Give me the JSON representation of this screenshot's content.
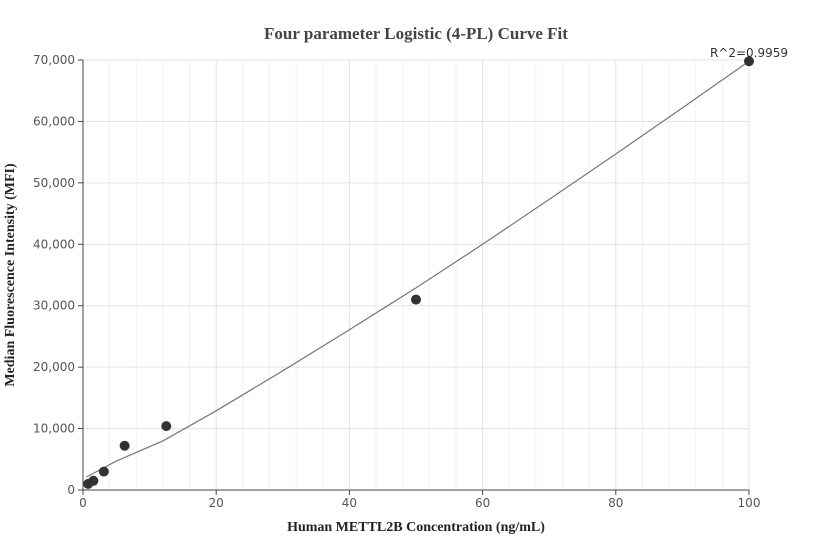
{
  "chart_data": {
    "type": "scatter",
    "title": "Four parameter Logistic (4-PL) Curve Fit",
    "xlabel": "Human METTL2B Concentration (ng/mL)",
    "ylabel": "Median Fluorescence Intensity (MFI)",
    "xlim": [
      0,
      100
    ],
    "ylim": [
      0,
      70000
    ],
    "x_ticks": [
      0,
      20,
      40,
      60,
      80,
      100
    ],
    "x_tick_labels": [
      "0",
      "20",
      "40",
      "60",
      "80",
      "100"
    ],
    "y_ticks": [
      0,
      10000,
      20000,
      30000,
      40000,
      50000,
      60000,
      70000
    ],
    "y_tick_labels": [
      "0",
      "10,000",
      "20,000",
      "30,000",
      "40,000",
      "50,000",
      "60,000",
      "70,000"
    ],
    "grid": true,
    "annotation": "R^2=0.9959",
    "series": [
      {
        "points": [
          {
            "x": 0.78,
            "y": 1000
          },
          {
            "x": 1.56,
            "y": 1500
          },
          {
            "x": 3.13,
            "y": 3000
          },
          {
            "x": 6.25,
            "y": 7200
          },
          {
            "x": 12.5,
            "y": 10400
          },
          {
            "x": 50,
            "y": 31000
          },
          {
            "x": 100,
            "y": 69800
          }
        ]
      }
    ],
    "fit_curve": [
      {
        "x": 0.5,
        "y": 2100
      },
      {
        "x": 5,
        "y": 4700
      },
      {
        "x": 12,
        "y": 8000
      },
      {
        "x": 20,
        "y": 12900
      },
      {
        "x": 30,
        "y": 19400
      },
      {
        "x": 40,
        "y": 26100
      },
      {
        "x": 50,
        "y": 32900
      },
      {
        "x": 60,
        "y": 40000
      },
      {
        "x": 70,
        "y": 47300
      },
      {
        "x": 80,
        "y": 54700
      },
      {
        "x": 90,
        "y": 62200
      },
      {
        "x": 100,
        "y": 69800
      }
    ],
    "colors": {
      "point": "#333333",
      "line": "#777777",
      "grid": "#e3e3e3"
    }
  }
}
